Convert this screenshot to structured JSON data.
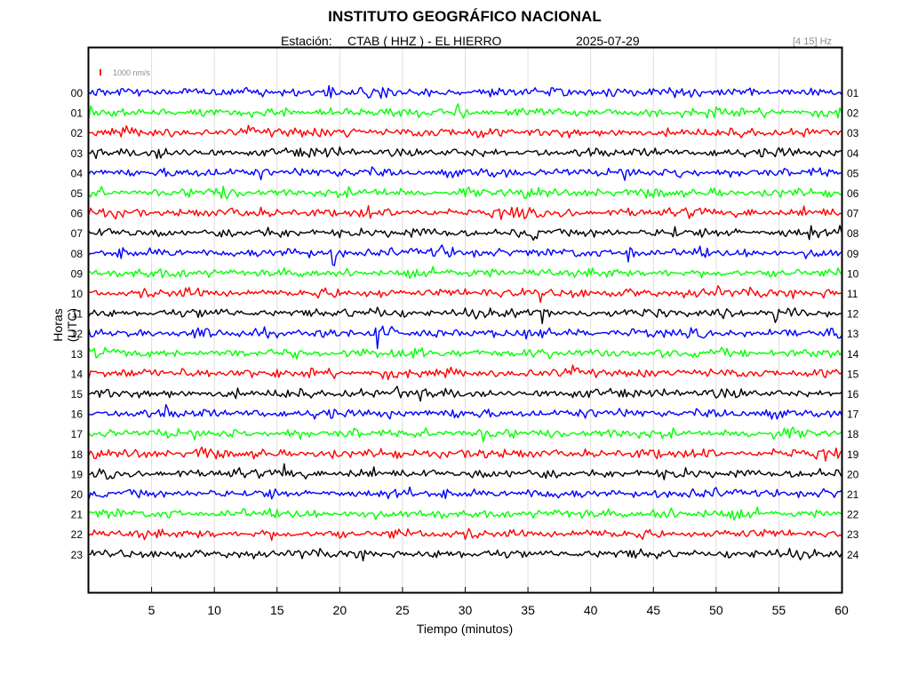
{
  "header": {
    "title": "INSTITUTO GEOGRÁFICO NACIONAL",
    "station_label": "Estación:",
    "station_name": "CTAB ( HHZ ) - EL HIERRO",
    "date": "2025-07-29",
    "frequency_band": "[4 15] Hz"
  },
  "chart_data": {
    "type": "line",
    "title": "INSTITUTO GEOGRÁFICO NACIONAL",
    "subtitle": "Estación:  CTAB ( HHZ ) - EL HIERRO    2025-07-29",
    "xlabel": "Tiempo (minutos)",
    "ylabel": "Horas (UTC)",
    "xlim": [
      0,
      60
    ],
    "x_ticks": [
      5,
      10,
      15,
      20,
      25,
      30,
      35,
      40,
      45,
      50,
      55,
      60
    ],
    "x_tick_labels": [
      "5",
      "10",
      "15",
      "20",
      "25",
      "30",
      "35",
      "40",
      "45",
      "50",
      "55",
      "60"
    ],
    "grid": true,
    "scale_bar": {
      "label": "1000 nm/s",
      "color": "#ff0000"
    },
    "left_labels": [
      "00",
      "01",
      "02",
      "03",
      "04",
      "05",
      "06",
      "07",
      "08",
      "09",
      "10",
      "11",
      "12",
      "13",
      "14",
      "15",
      "16",
      "17",
      "18",
      "19",
      "20",
      "21",
      "22",
      "23"
    ],
    "right_labels": [
      "01",
      "02",
      "03",
      "04",
      "05",
      "06",
      "07",
      "08",
      "09",
      "10",
      "11",
      "12",
      "13",
      "14",
      "15",
      "16",
      "17",
      "18",
      "19",
      "20",
      "21",
      "22",
      "23",
      "24"
    ],
    "trace_colors": [
      "#0000ff",
      "#00ff00",
      "#ff0000",
      "#000000"
    ],
    "series": [
      {
        "hour": 0,
        "events": [
          {
            "t": 7.6,
            "a": 1.3
          },
          {
            "t": 19.0,
            "a": 1.9
          }
        ]
      },
      {
        "hour": 1,
        "events": [
          {
            "t": 24.5,
            "a": 1.2
          },
          {
            "t": 29.5,
            "a": 1.1
          }
        ]
      },
      {
        "hour": 2,
        "events": [
          {
            "t": 20.5,
            "a": 1.2
          },
          {
            "t": 31.0,
            "a": 1.1
          }
        ]
      },
      {
        "hour": 3,
        "events": [
          {
            "t": 5.5,
            "a": 1.1
          }
        ]
      },
      {
        "hour": 4,
        "events": [
          {
            "t": 13.5,
            "a": 1.2
          },
          {
            "t": 47.0,
            "a": 1.2
          }
        ]
      },
      {
        "hour": 5,
        "events": [
          {
            "t": 10.5,
            "a": 1.1
          }
        ]
      },
      {
        "hour": 6,
        "events": [
          {
            "t": 22.0,
            "a": 1.2
          },
          {
            "t": 34.3,
            "a": 2.6
          }
        ]
      },
      {
        "hour": 7,
        "events": [
          {
            "t": 35.5,
            "a": 1.3
          },
          {
            "t": 46.5,
            "a": 1.3
          },
          {
            "t": 57.5,
            "a": 1.7
          }
        ]
      },
      {
        "hour": 8,
        "events": [
          {
            "t": 19.5,
            "a": 2.4
          },
          {
            "t": 28.0,
            "a": 1.3
          },
          {
            "t": 43.0,
            "a": 2.4
          }
        ]
      },
      {
        "hour": 9,
        "events": [
          {
            "t": 3.0,
            "a": 1.1
          }
        ]
      },
      {
        "hour": 10,
        "events": [
          {
            "t": 23.0,
            "a": 1.2
          },
          {
            "t": 36.0,
            "a": 1.6
          },
          {
            "t": 50.0,
            "a": 1.3
          }
        ]
      },
      {
        "hour": 11,
        "events": [
          {
            "t": 22.8,
            "a": 1.9
          },
          {
            "t": 36.2,
            "a": 3.2
          },
          {
            "t": 54.5,
            "a": 1.7
          }
        ]
      },
      {
        "hour": 12,
        "events": [
          {
            "t": 3.8,
            "a": 2.0
          },
          {
            "t": 23.0,
            "a": 1.5
          },
          {
            "t": 36.0,
            "a": 1.7
          },
          {
            "t": 59.8,
            "a": 2.0
          }
        ]
      },
      {
        "hour": 13,
        "events": [
          {
            "t": 25.0,
            "a": 1.4
          },
          {
            "t": 42.5,
            "a": 1.2
          }
        ]
      },
      {
        "hour": 14,
        "events": [
          {
            "t": 7.5,
            "a": 1.3
          }
        ]
      },
      {
        "hour": 15,
        "events": [
          {
            "t": 24.5,
            "a": 1.3
          }
        ]
      },
      {
        "hour": 16,
        "events": [
          {
            "t": 6.0,
            "a": 1.9
          },
          {
            "t": 30.5,
            "a": 1.2
          }
        ]
      },
      {
        "hour": 17,
        "events": [
          {
            "t": 31.5,
            "a": 1.7
          },
          {
            "t": 54.5,
            "a": 1.3
          }
        ]
      },
      {
        "hour": 18,
        "events": [
          {
            "t": 9.0,
            "a": 1.4
          },
          {
            "t": 30.9,
            "a": 2.4
          },
          {
            "t": 49.0,
            "a": 1.4
          }
        ]
      },
      {
        "hour": 19,
        "events": [
          {
            "t": 15.5,
            "a": 1.2
          },
          {
            "t": 30.5,
            "a": 1.2
          }
        ]
      },
      {
        "hour": 20,
        "events": [
          {
            "t": 30.0,
            "a": 1.1
          }
        ]
      },
      {
        "hour": 21,
        "events": [
          {
            "t": 21.5,
            "a": 1.3
          },
          {
            "t": 45.0,
            "a": 1.5
          },
          {
            "t": 46.0,
            "a": 1.4
          }
        ]
      },
      {
        "hour": 22,
        "events": [
          {
            "t": 43.5,
            "a": 1.5
          }
        ]
      },
      {
        "hour": 23,
        "events": [
          {
            "t": 45.0,
            "a": 1.4
          }
        ]
      }
    ]
  }
}
